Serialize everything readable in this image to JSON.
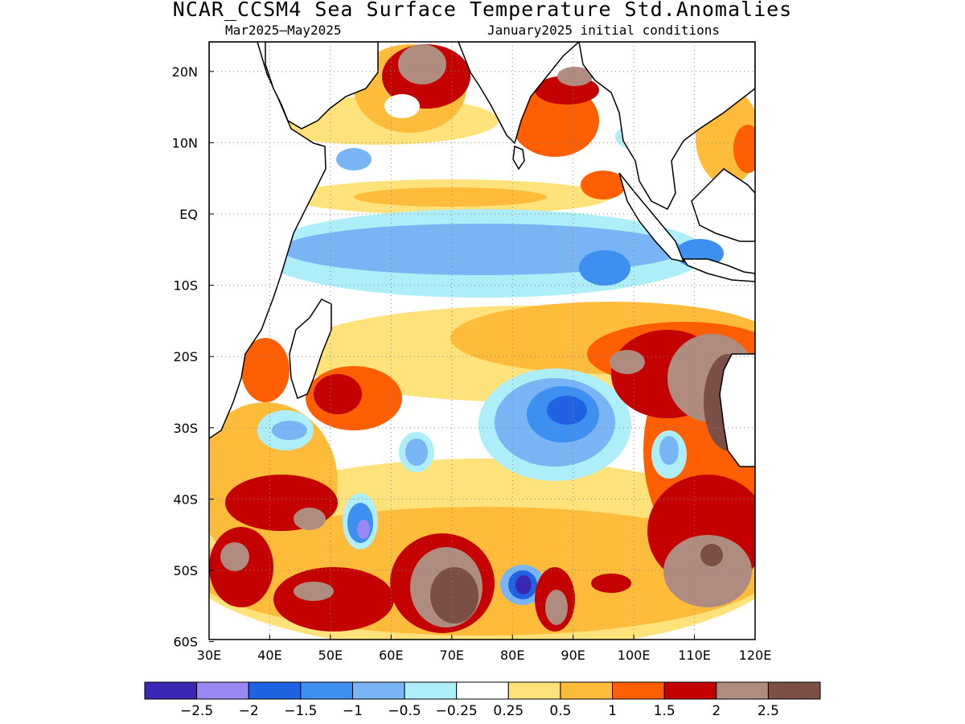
{
  "title": "NCAR_CCSM4 Sea Surface Temperature Std.Anomalies",
  "subtitle_left": "Mar2025–May2025",
  "subtitle_right": "January2025 initial conditions",
  "axes": {
    "lon_ticks": [
      "30E",
      "40E",
      "50E",
      "60E",
      "70E",
      "80E",
      "90E",
      "100E",
      "110E",
      "120E"
    ],
    "lat_ticks": [
      "20N",
      "10N",
      "EQ",
      "10S",
      "20S",
      "30S",
      "40S",
      "50S",
      "60S"
    ],
    "lon_range": [
      30,
      120
    ],
    "lat_range": [
      -60,
      24
    ],
    "grid": "dotted"
  },
  "colorbar": {
    "colors": [
      "#3a28b4",
      "#9a87f2",
      "#1f63e2",
      "#3d8ff0",
      "#79b4f5",
      "#aeeef8",
      "#ffffff",
      "#ffe27a",
      "#ffbb3a",
      "#ff5f00",
      "#c40000",
      "#b08b80",
      "#7b4f46"
    ],
    "labels": [
      "−2.5",
      "−2",
      "−1.5",
      "−1",
      "−0.5",
      "−0.25",
      "0.25",
      "0.5",
      "1",
      "1.5",
      "2",
      "2.5"
    ]
  },
  "chart_data": {
    "type": "heatmap",
    "title": "NCAR_CCSM4 Sea Surface Temperature Std.Anomalies",
    "period": "Mar2025–May2025",
    "initial_conditions": "January2025",
    "xlim": [
      30,
      120
    ],
    "ylim": [
      -60,
      24
    ],
    "levels": [
      -2.5,
      -2,
      -1.5,
      -1,
      -0.5,
      -0.25,
      0.25,
      0.5,
      1,
      1.5,
      2,
      2.5
    ],
    "anomaly_regions": [
      {
        "lon": 68,
        "lat": 20,
        "value": 2.5
      },
      {
        "lon": 87,
        "lat": 16,
        "value": 2.0
      },
      {
        "lon": 73,
        "lat": 2,
        "value": 0.5
      },
      {
        "lon": 80,
        "lat": -4,
        "value": -0.5
      },
      {
        "lon": 94,
        "lat": -7,
        "value": -1.0
      },
      {
        "lon": 86,
        "lat": -28,
        "value": -1.5
      },
      {
        "lon": 106,
        "lat": -33,
        "value": -1.0
      },
      {
        "lon": 55,
        "lat": -45,
        "value": -2.0
      },
      {
        "lon": 82,
        "lat": -53,
        "value": -2.5
      },
      {
        "lon": 65,
        "lat": -33,
        "value": -1.0
      },
      {
        "lon": 45,
        "lat": -30,
        "value": -1.0
      },
      {
        "lon": 112,
        "lat": -24,
        "value": 2.5
      },
      {
        "lon": 67,
        "lat": -53,
        "value": 2.5
      },
      {
        "lon": 35,
        "lat": -49,
        "value": 2.5
      },
      {
        "lon": 87,
        "lat": -56,
        "value": 2.5
      },
      {
        "lon": 112,
        "lat": -52,
        "value": 2.5
      },
      {
        "lon": 50,
        "lat": -28,
        "value": 1.5
      },
      {
        "lon": 100,
        "lat": -20,
        "value": 1.5
      },
      {
        "lon": 63,
        "lat": -40,
        "value": 0.5
      }
    ]
  }
}
